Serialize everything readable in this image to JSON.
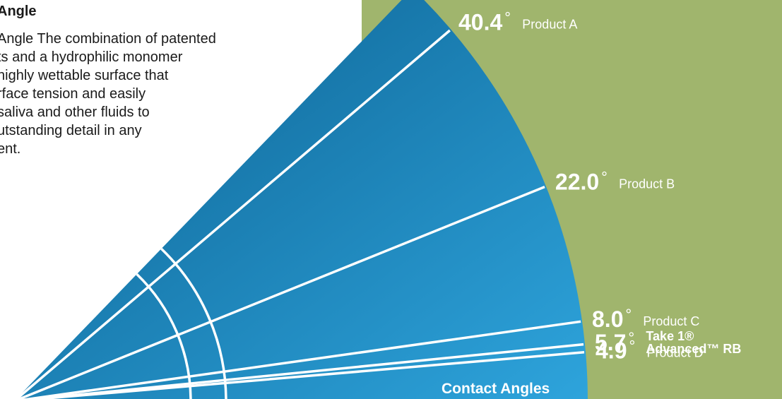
{
  "intro": {
    "heading": "Angle",
    "body": "Angle The combination of patented\nts and a hydrophilic monomer\nhighly wettable surface that\nrface tension and easily\n saliva and other fluids to\nutstanding detail in any\nent."
  },
  "colors": {
    "background": "#ffffff",
    "panel": "#a0b56d",
    "fan_dark": "#0b5f8f",
    "fan_light": "#2ea4dc",
    "rays": "#ffffff",
    "text_dark": "#1a1a1a"
  },
  "chart_data": {
    "type": "fan",
    "title": "Contact Angles",
    "unit": "°",
    "series": [
      {
        "label": "Product A",
        "value": 40.4,
        "display": "40.4"
      },
      {
        "label": "Product B",
        "value": 22.0,
        "display": "22.0"
      },
      {
        "label": "Product C",
        "value": 8.0,
        "display": "8.0"
      },
      {
        "label": "Take 1® Advanced™ RB",
        "label_lines": [
          "Take 1®",
          "Advanced™ RB"
        ],
        "value": 5.7,
        "display": "5.7",
        "highlight": true
      },
      {
        "label": "Product D",
        "value": 4.9,
        "display": "4.9"
      }
    ]
  }
}
